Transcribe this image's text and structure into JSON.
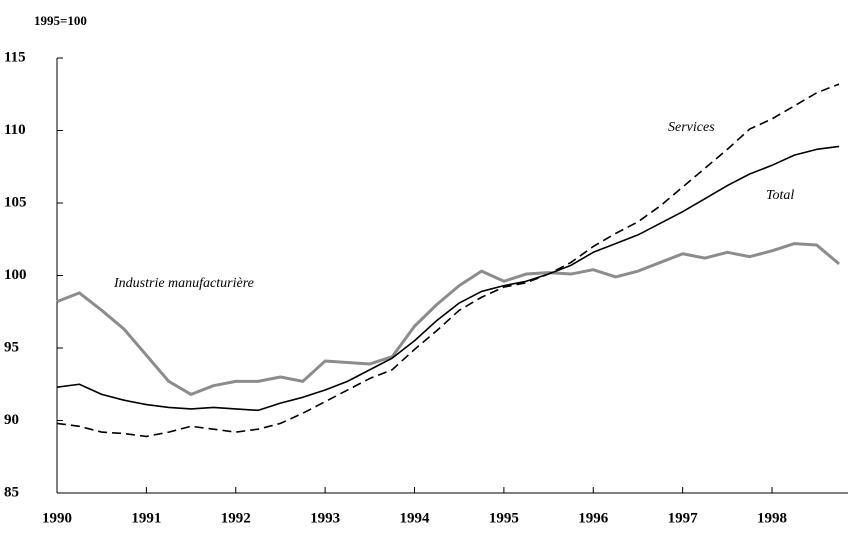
{
  "chart_data": {
    "type": "line",
    "y_label": "1995=100",
    "x": [
      1990,
      1990.25,
      1990.5,
      1990.75,
      1991,
      1991.25,
      1991.5,
      1991.75,
      1992,
      1992.25,
      1992.5,
      1992.75,
      1993,
      1993.25,
      1993.5,
      1993.75,
      1994,
      1994.25,
      1994.5,
      1994.75,
      1995,
      1995.25,
      1995.5,
      1995.75,
      1996,
      1996.25,
      1996.5,
      1996.75,
      1997,
      1997.25,
      1997.5,
      1997.75,
      1998,
      1998.25,
      1998.5,
      1998.75
    ],
    "series": [
      {
        "name": "Industrie manufacturière",
        "color": "#8c8c8c",
        "dash": false,
        "width": 3,
        "values": [
          98.2,
          98.8,
          97.6,
          96.3,
          94.5,
          92.7,
          91.8,
          92.4,
          92.7,
          92.7,
          93.0,
          92.7,
          94.1,
          94.0,
          93.9,
          94.4,
          96.5,
          98.0,
          99.3,
          100.3,
          99.6,
          100.1,
          100.2,
          100.1,
          100.4,
          99.9,
          100.3,
          100.9,
          101.5,
          101.2,
          101.6,
          101.3,
          101.7,
          102.2,
          102.1,
          100.8
        ]
      },
      {
        "name": "Total",
        "color": "#000000",
        "dash": false,
        "width": 1.6,
        "values": [
          92.3,
          92.5,
          91.8,
          91.4,
          91.1,
          90.9,
          90.8,
          90.9,
          90.8,
          90.7,
          91.2,
          91.6,
          92.1,
          92.7,
          93.5,
          94.3,
          95.5,
          96.9,
          98.1,
          98.9,
          99.3,
          99.6,
          100.1,
          100.7,
          101.6,
          102.2,
          102.8,
          103.6,
          104.4,
          105.3,
          106.2,
          107.0,
          107.6,
          108.3,
          108.7,
          108.9
        ]
      },
      {
        "name": "Services",
        "color": "#000000",
        "dash": true,
        "width": 1.6,
        "values": [
          89.8,
          89.6,
          89.2,
          89.1,
          88.9,
          89.2,
          89.6,
          89.4,
          89.2,
          89.4,
          89.8,
          90.5,
          91.3,
          92.1,
          92.9,
          93.5,
          94.9,
          96.2,
          97.6,
          98.5,
          99.2,
          99.5,
          100.1,
          100.9,
          102.0,
          102.9,
          103.7,
          104.8,
          106.1,
          107.4,
          108.7,
          110.1,
          110.8,
          111.7,
          112.6,
          113.2
        ]
      }
    ],
    "xlim": [
      1990,
      1998.85
    ],
    "xticks": [
      1990,
      1991,
      1992,
      1993,
      1994,
      1995,
      1996,
      1997,
      1998
    ],
    "ylim": [
      85,
      115
    ],
    "yticks": [
      85,
      90,
      95,
      100,
      105,
      110,
      115
    ],
    "grid": false
  }
}
